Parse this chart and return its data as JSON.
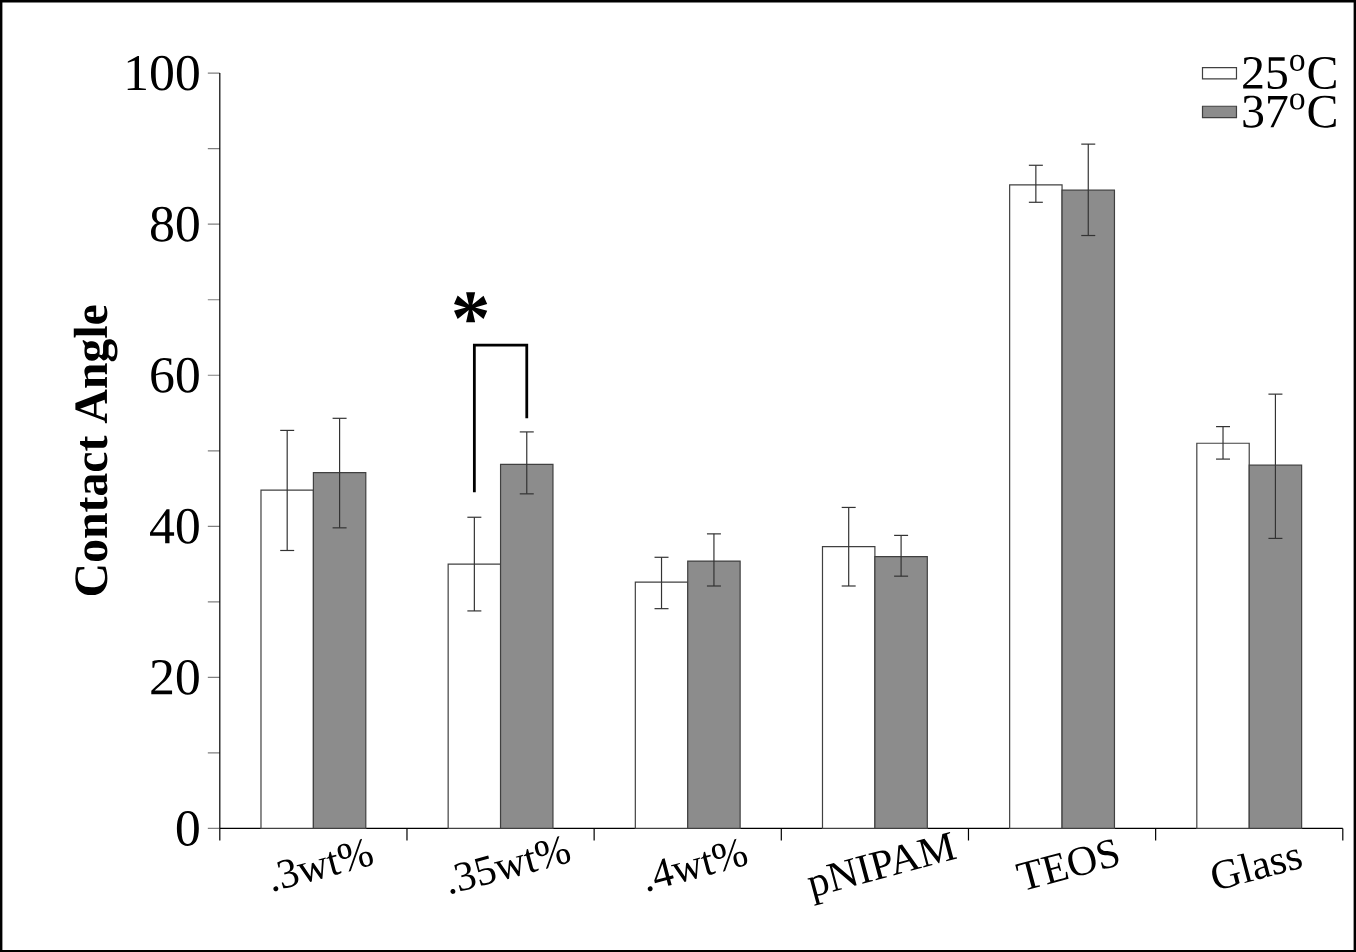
{
  "chart_data": {
    "type": "bar",
    "categories": [
      ".3wt%",
      ".35wt%",
      ".4wt%",
      "pNIPAM",
      "TEOS",
      "Glass"
    ],
    "ylabel": "Contact Angle",
    "series": [
      {
        "name": "25$^{o}$C",
        "color": "#ffffff",
        "values": [
          44.8,
          35.0,
          32.6,
          37.3,
          85.2,
          51.0
        ],
        "errors": [
          [
            36.8,
            52.7
          ],
          [
            28.8,
            41.2
          ],
          [
            29.1,
            35.9
          ],
          [
            32.1,
            42.5
          ],
          [
            82.9,
            87.8
          ],
          [
            48.9,
            53.2
          ]
        ]
      },
      {
        "name": "37$^{o}$C",
        "color": "#8c8c8c",
        "values": [
          47.1,
          48.2,
          35.4,
          36.0,
          84.5,
          48.1
        ],
        "errors": [
          [
            39.8,
            54.3
          ],
          [
            44.3,
            52.5
          ],
          [
            32.1,
            39.0
          ],
          [
            33.4,
            38.8
          ],
          [
            78.5,
            90.6
          ],
          [
            38.4,
            57.5
          ]
        ]
      }
    ],
    "ylim": [
      0,
      100
    ],
    "yticks": [
      0,
      {
        "value": 10,
        "label": null
      },
      20,
      {
        "value": 30,
        "label": null
      },
      40,
      {
        "value": 50,
        "label": null
      },
      60,
      {
        "value": 70,
        "label": null
      },
      80,
      {
        "value": 90,
        "label": null
      },
      100
    ],
    "annotations": [
      "*"
    ],
    "legend": "top right",
    "grid": false
  }
}
